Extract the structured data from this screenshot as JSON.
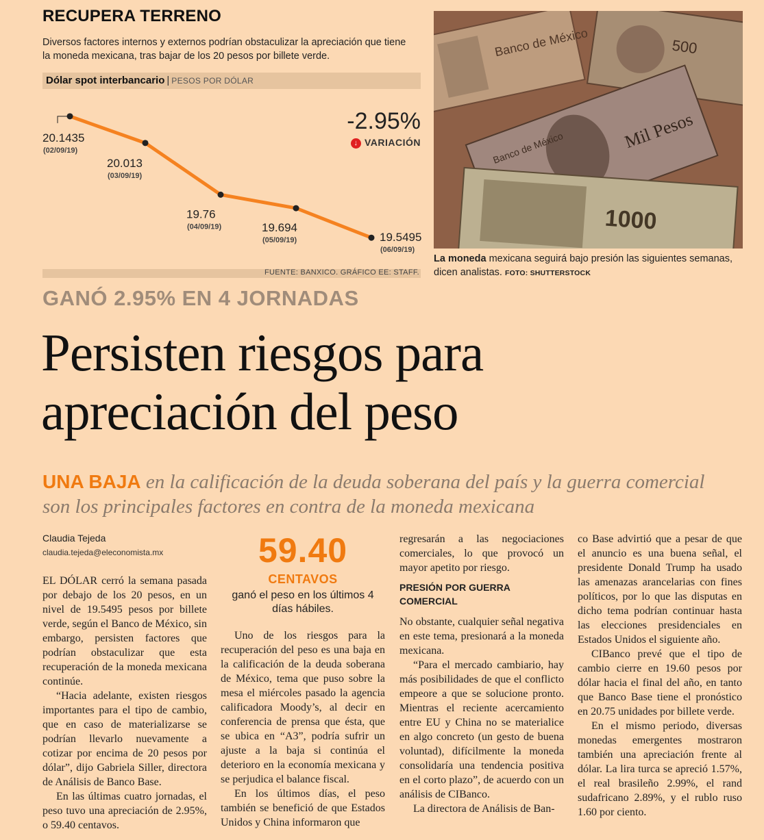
{
  "infographic": {
    "title": "RECUPERA TERRENO",
    "description": "Diversos factores internos y externos podrían obstaculizar la apreciación que tiene la moneda mexicana, tras bajar de los 20 pesos por billete verde.",
    "chart_header": "Dólar spot interbancario",
    "chart_unit": "PESOS POR DÓLAR",
    "change_value": "-2.95%",
    "change_label": "VARIACIÓN",
    "source": "FUENTE: BANXICO. GRÁFICO EE: STAFF.",
    "line_color": "#f58220"
  },
  "chart_data": {
    "type": "line",
    "title": "Dólar spot interbancario",
    "ylabel": "PESOS POR DÓLAR",
    "x": [
      "02/09/19",
      "03/09/19",
      "04/09/19",
      "05/09/19",
      "06/09/19"
    ],
    "x_labels": [
      "(02/09/19)",
      "(03/09/19)",
      "(04/09/19)",
      "(05/09/19)",
      "(06/09/19)"
    ],
    "series": [
      {
        "values": [
          20.1435,
          20.013,
          19.76,
          19.694,
          19.5495
        ],
        "labels": [
          "20.1435",
          "20.013",
          "19.76",
          "19.694",
          "19.5495"
        ]
      }
    ],
    "ylim": [
      19.5,
      20.2
    ],
    "grid": false,
    "legend": "none"
  },
  "photo": {
    "caption_lead": "La moneda",
    "caption_text": " mexicana seguirá bajo presión las siguientes semanas, dicen analistas.",
    "caption_credit": "FOTO: SHUTTERSTOCK"
  },
  "article": {
    "kicker": "GANÓ 2.95% EN  4 JORNADAS",
    "headline": "Persisten riesgos para apreciación del peso",
    "deck_lead": "UNA BAJA",
    "deck_text": " en la calificación de la deuda soberana del país y la guerra comercial son los principales factores en contra de la moneda mexicana",
    "author": "Claudia Tejeda",
    "email": "claudia.tejeda@eleconomista.mx",
    "callout": {
      "number": "59.40",
      "unit": "CENTAVOS",
      "text": "ganó el peso en los últimos 4 días hábiles."
    },
    "col1": [
      "EL DÓLAR cerró la semana pasada por debajo de los 20 pesos, en un nivel de 19.5495 pesos por billete verde, según el Banco de México, sin embargo, persisten factores que podrían obstaculizar que esta recuperación de la moneda mexicana continúe.",
      "“Hacia adelante, existen riesgos importantes para el tipo de cambio, que en caso de materializarse se podrían llevarlo nuevamente a cotizar por encima de 20 pesos por dólar”, dijo Gabriela Siller, directora de Análisis de Banco Base.",
      "En las últimas cuatro jornadas, el peso tuvo una apreciación de 2.95%, o 59.40 centavos."
    ],
    "col2": [
      "Uno de los riesgos para la recuperación del peso es una baja en la calificación de la deuda soberana de México, tema que puso sobre la mesa el miércoles pasado la agencia calificadora Moody’s, al decir en conferencia de prensa que ésta, que se ubica en “A3”, podría sufrir un ajuste a la baja si continúa el deterioro en la economía mexicana y se perjudica el balance fiscal.",
      "En los últimos días, el peso también se benefició de que Estados Unidos y China informaron que"
    ],
    "col3_intro": "regresarán a las negociaciones comerciales, lo que provocó un mayor apetito por riesgo.",
    "col3_subhead": "PRESIÓN POR GUERRA COMERCIAL",
    "col3": [
      "No obstante, cualquier señal negativa en este tema, presionará a la moneda mexicana.",
      "“Para el mercado cambiario, hay más posibilidades de que el conflicto empeore a que se solucione pronto. Mientras el reciente acercamiento entre EU y China no se materialice en algo concreto (un gesto de buena voluntad), difícilmente la moneda consolidaría una tendencia positiva en el corto plazo”, de acuerdo con un análisis de CIBanco.",
      "La directora de Análisis de Ban-"
    ],
    "col4_intro": "co Base advirtió que a pesar de que el anuncio es una buena señal, el presidente Donald Trump ha usado las amenazas arancelarias con fines políticos, por lo que las disputas en dicho tema podrían continuar hasta las elecciones presidenciales en Estados Unidos el siguiente año.",
    "col4": [
      "CIBanco prevé que el tipo de cambio cierre en 19.60 pesos por dólar hacia el final del año, en tanto que Banco Base tiene el pronóstico en 20.75 unidades por billete verde.",
      "En el mismo periodo, diversas monedas emergentes mostraron también una apreciación frente al dólar. La lira turca se apreció 1.57%, el real brasileño 2.99%, el rand sudafricano 2.89%, y el rublo ruso 1.60 por ciento."
    ]
  }
}
